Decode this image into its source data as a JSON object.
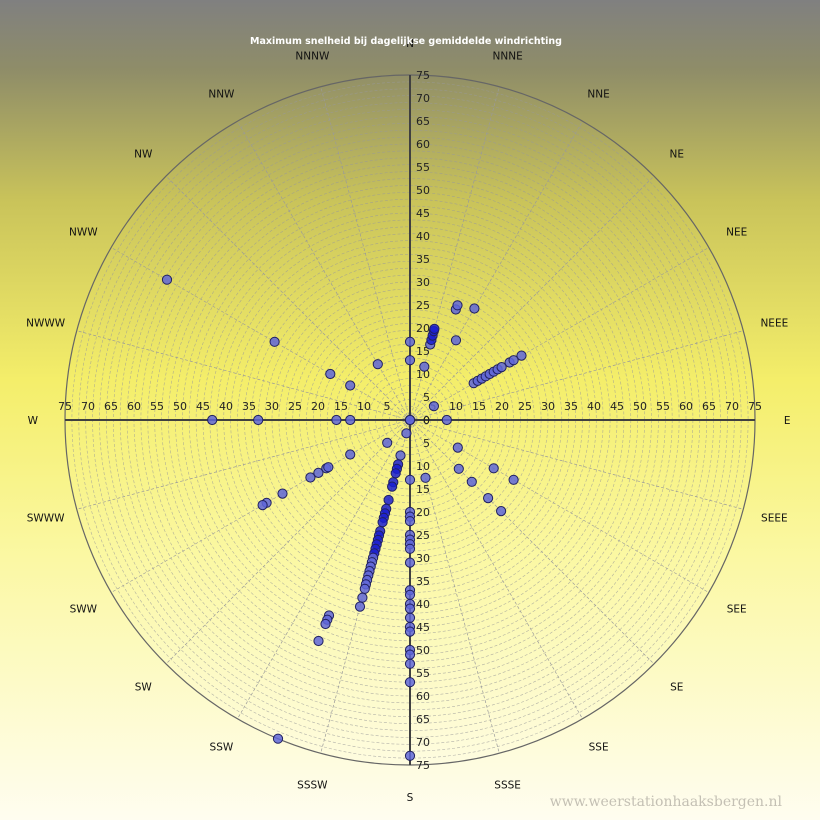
{
  "chart_data": {
    "type": "scatter",
    "projection": "polar",
    "title": "Maximum  snelheid  bij  dagelijkse  gemiddelde  windrichting",
    "directions": [
      "N",
      "NNNE",
      "NNE",
      "NE",
      "NEE",
      "NEEE",
      "E",
      "SEEE",
      "SEE",
      "SE",
      "SSE",
      "SSSE",
      "S",
      "SSSW",
      "SSW",
      "SW",
      "SWW",
      "SWWW",
      "W",
      "NWWW",
      "NWW",
      "NW",
      "NNW",
      "NNNW"
    ],
    "ticks": [
      0,
      5,
      10,
      15,
      20,
      25,
      30,
      35,
      40,
      45,
      50,
      55,
      60,
      65,
      70,
      75
    ],
    "rlim": [
      0,
      75
    ],
    "angle_unit": "degrees clockwise from north",
    "colors": {
      "marker_fill": "#5f66d8",
      "marker_dark": "#1a1fd0",
      "marker_edge": "#202060",
      "axis": "#404040",
      "grid": "#9a9a9a"
    },
    "points": [
      {
        "angle": 0,
        "r": 13
      },
      {
        "angle": 0,
        "r": 17
      },
      {
        "angle": 0,
        "r": 0
      },
      {
        "angle": 15,
        "r": 12
      },
      {
        "angle": 15,
        "r": 17
      },
      {
        "angle": 15,
        "r": 18
      },
      {
        "angle": 15,
        "r": 19
      },
      {
        "angle": 15,
        "r": 20
      },
      {
        "angle": 15,
        "r": 20.5
      },
      {
        "angle": 22.5,
        "r": 26
      },
      {
        "angle": 22.5,
        "r": 27
      },
      {
        "angle": 30,
        "r": 20
      },
      {
        "angle": 30,
        "r": 28
      },
      {
        "angle": 60,
        "r": 6
      },
      {
        "angle": 60,
        "r": 16
      },
      {
        "angle": 60,
        "r": 17
      },
      {
        "angle": 60,
        "r": 18
      },
      {
        "angle": 60,
        "r": 19
      },
      {
        "angle": 60,
        "r": 20
      },
      {
        "angle": 60,
        "r": 21
      },
      {
        "angle": 60,
        "r": 22
      },
      {
        "angle": 60,
        "r": 23
      },
      {
        "angle": 60,
        "r": 25
      },
      {
        "angle": 60,
        "r": 26
      },
      {
        "angle": 60,
        "r": 28
      },
      {
        "angle": 90,
        "r": 8
      },
      {
        "angle": 120,
        "r": 12
      },
      {
        "angle": 120,
        "r": 21
      },
      {
        "angle": 120,
        "r": 26
      },
      {
        "angle": 135,
        "r": 15
      },
      {
        "angle": 135,
        "r": 19
      },
      {
        "angle": 135,
        "r": 24
      },
      {
        "angle": 135,
        "r": 28
      },
      {
        "angle": 165,
        "r": 13
      },
      {
        "angle": 180,
        "r": 13
      },
      {
        "angle": 180,
        "r": 20
      },
      {
        "angle": 180,
        "r": 21
      },
      {
        "angle": 180,
        "r": 22
      },
      {
        "angle": 180,
        "r": 25
      },
      {
        "angle": 180,
        "r": 26
      },
      {
        "angle": 180,
        "r": 27
      },
      {
        "angle": 180,
        "r": 28
      },
      {
        "angle": 180,
        "r": 31
      },
      {
        "angle": 180,
        "r": 37
      },
      {
        "angle": 180,
        "r": 38
      },
      {
        "angle": 180,
        "r": 40
      },
      {
        "angle": 180,
        "r": 41
      },
      {
        "angle": 180,
        "r": 43
      },
      {
        "angle": 180,
        "r": 45
      },
      {
        "angle": 180,
        "r": 46
      },
      {
        "angle": 180,
        "r": 50
      },
      {
        "angle": 180,
        "r": 51
      },
      {
        "angle": 180,
        "r": 53
      },
      {
        "angle": 180,
        "r": 57
      },
      {
        "angle": 180,
        "r": 73
      },
      {
        "angle": 195,
        "r": 3
      },
      {
        "angle": 195,
        "r": 8
      },
      {
        "angle": 195,
        "r": 10
      },
      {
        "angle": 195,
        "r": 11
      },
      {
        "angle": 195,
        "r": 12
      },
      {
        "angle": 195,
        "r": 14
      },
      {
        "angle": 195,
        "r": 15
      },
      {
        "angle": 195,
        "r": 18
      },
      {
        "angle": 195,
        "r": 20
      },
      {
        "angle": 195,
        "r": 21
      },
      {
        "angle": 195,
        "r": 22
      },
      {
        "angle": 195,
        "r": 23
      },
      {
        "angle": 195,
        "r": 25
      },
      {
        "angle": 195,
        "r": 26
      },
      {
        "angle": 195,
        "r": 27
      },
      {
        "angle": 195,
        "r": 28
      },
      {
        "angle": 195,
        "r": 29
      },
      {
        "angle": 195,
        "r": 30
      },
      {
        "angle": 195,
        "r": 31
      },
      {
        "angle": 195,
        "r": 32
      },
      {
        "angle": 195,
        "r": 33
      },
      {
        "angle": 195,
        "r": 34
      },
      {
        "angle": 195,
        "r": 35
      },
      {
        "angle": 195,
        "r": 36
      },
      {
        "angle": 195,
        "r": 37
      },
      {
        "angle": 195,
        "r": 38
      },
      {
        "angle": 195,
        "r": 40
      },
      {
        "angle": 195,
        "r": 42
      },
      {
        "angle": 202.5,
        "r": 46
      },
      {
        "angle": 202.5,
        "r": 47
      },
      {
        "angle": 202.5,
        "r": 48
      },
      {
        "angle": 202.5,
        "r": 52
      },
      {
        "angle": 202.5,
        "r": 75
      },
      {
        "angle": 225,
        "r": 7
      },
      {
        "angle": 240,
        "r": 15
      },
      {
        "angle": 240,
        "r": 21
      },
      {
        "angle": 240,
        "r": 23
      },
      {
        "angle": 240,
        "r": 25
      },
      {
        "angle": 240,
        "r": 32
      },
      {
        "angle": 240,
        "r": 36
      },
      {
        "angle": 240,
        "r": 37
      },
      {
        "angle": 240,
        "r": 20.5
      },
      {
        "angle": 270,
        "r": 0
      },
      {
        "angle": 270,
        "r": 13
      },
      {
        "angle": 270,
        "r": 16
      },
      {
        "angle": 270,
        "r": 33
      },
      {
        "angle": 270,
        "r": 43
      },
      {
        "angle": 300,
        "r": 15
      },
      {
        "angle": 300,
        "r": 20
      },
      {
        "angle": 300,
        "r": 34
      },
      {
        "angle": 300,
        "r": 61
      },
      {
        "angle": 330,
        "r": 14
      }
    ],
    "source": "www.weerstationhaaksbergen.nl"
  }
}
